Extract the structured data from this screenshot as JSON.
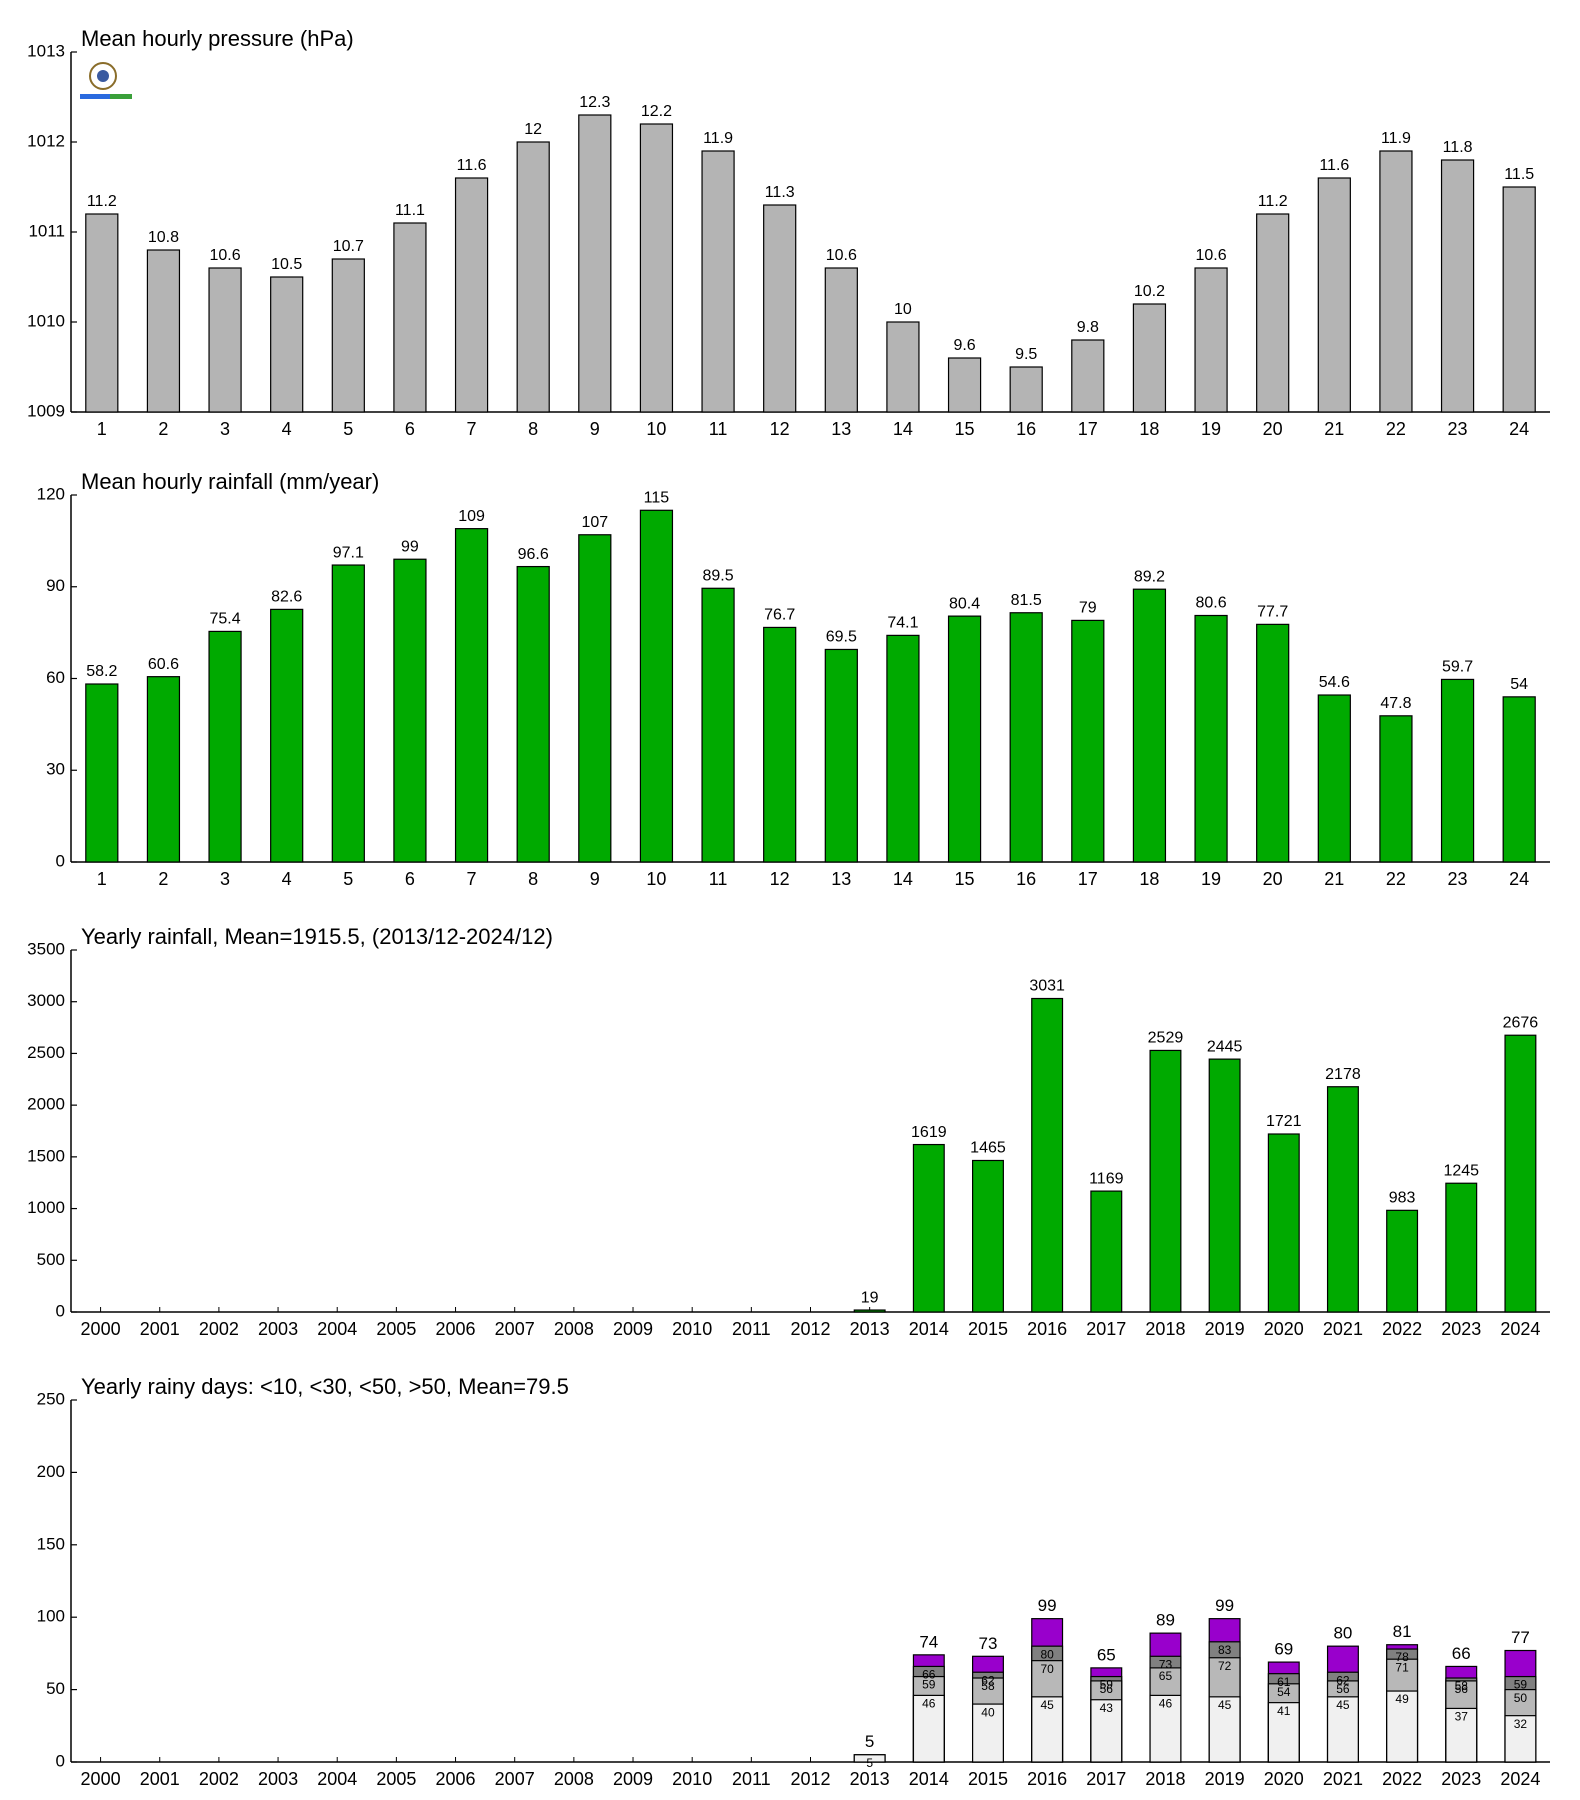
{
  "chart_data": [
    {
      "type": "bar",
      "title": "Mean hourly pressure (hPa)",
      "categories": [
        "1",
        "2",
        "3",
        "4",
        "5",
        "6",
        "7",
        "8",
        "9",
        "10",
        "11",
        "12",
        "13",
        "14",
        "15",
        "16",
        "17",
        "18",
        "19",
        "20",
        "21",
        "22",
        "23",
        "24"
      ],
      "values": [
        1011.2,
        1010.8,
        1010.6,
        1010.5,
        1010.7,
        1011.1,
        1011.6,
        1012,
        1012.3,
        1012.2,
        1011.9,
        1011.3,
        1010.6,
        1010,
        1009.6,
        1009.5,
        1009.8,
        1010.2,
        1010.6,
        1011.2,
        1011.6,
        1011.9,
        1011.8,
        1011.5
      ],
      "value_labels": [
        "11.2",
        "10.8",
        "10.6",
        "10.5",
        "10.7",
        "11.1",
        "11.6",
        "12",
        "12.3",
        "12.2",
        "11.9",
        "11.3",
        "10.6",
        "10",
        "9.6",
        "9.5",
        "9.8",
        "10.2",
        "10.6",
        "11.2",
        "11.6",
        "11.9",
        "11.8",
        "11.5"
      ],
      "color": "#b4b4b4",
      "ylim": [
        1009,
        1013
      ],
      "yticks": [
        1009,
        1010,
        1011,
        1012,
        1013
      ]
    },
    {
      "type": "bar",
      "title": "Mean hourly rainfall (mm/year)",
      "categories": [
        "1",
        "2",
        "3",
        "4",
        "5",
        "6",
        "7",
        "8",
        "9",
        "10",
        "11",
        "12",
        "13",
        "14",
        "15",
        "16",
        "17",
        "18",
        "19",
        "20",
        "21",
        "22",
        "23",
        "24"
      ],
      "values": [
        58.2,
        60.6,
        75.4,
        82.6,
        97.1,
        99,
        109,
        96.6,
        107,
        115,
        89.5,
        76.7,
        69.5,
        74.1,
        80.4,
        81.5,
        79,
        89.2,
        80.6,
        77.7,
        54.6,
        47.8,
        59.7,
        54
      ],
      "color": "#00aa00",
      "ylim": [
        0,
        120
      ],
      "yticks": [
        0,
        30,
        60,
        90,
        120
      ]
    },
    {
      "type": "bar",
      "title": "Yearly rainfall, Mean=1915.5, (2013/12-2024/12)",
      "categories": [
        "2000",
        "2001",
        "2002",
        "2003",
        "2004",
        "2005",
        "2006",
        "2007",
        "2008",
        "2009",
        "2010",
        "2011",
        "2012",
        "2013",
        "2014",
        "2015",
        "2016",
        "2017",
        "2018",
        "2019",
        "2020",
        "2021",
        "2022",
        "2023",
        "2024"
      ],
      "values": [
        null,
        null,
        null,
        null,
        null,
        null,
        null,
        null,
        null,
        null,
        null,
        null,
        null,
        19,
        1619,
        1465,
        3031,
        1169,
        2529,
        2445,
        1721,
        2178,
        983,
        1245,
        2676
      ],
      "color": "#00aa00",
      "ylim": [
        0,
        3500
      ],
      "yticks": [
        0,
        500,
        1000,
        1500,
        2000,
        2500,
        3000,
        3500
      ]
    },
    {
      "type": "bar",
      "title": "Yearly rainy days: <10, <30, <50, >50, Mean=79.5",
      "overlap": true,
      "categories": [
        "2000",
        "2001",
        "2002",
        "2003",
        "2004",
        "2005",
        "2006",
        "2007",
        "2008",
        "2009",
        "2010",
        "2011",
        "2012",
        "2013",
        "2014",
        "2015",
        "2016",
        "2017",
        "2018",
        "2019",
        "2020",
        "2021",
        "2022",
        "2023",
        "2024"
      ],
      "series": [
        {
          "color": "#f0f0f0",
          "values": [
            null,
            null,
            null,
            null,
            null,
            null,
            null,
            null,
            null,
            null,
            null,
            null,
            null,
            5,
            46,
            40,
            45,
            43,
            46,
            45,
            41,
            45,
            49,
            37,
            32
          ]
        },
        {
          "color": "#b8b8b8",
          "values": [
            null,
            null,
            null,
            null,
            null,
            null,
            null,
            null,
            null,
            null,
            null,
            null,
            null,
            null,
            59,
            58,
            70,
            56,
            65,
            72,
            54,
            56,
            71,
            56,
            50
          ]
        },
        {
          "color": "#808080",
          "values": [
            null,
            null,
            null,
            null,
            null,
            null,
            null,
            null,
            null,
            null,
            null,
            null,
            null,
            null,
            66,
            62,
            80,
            59,
            73,
            83,
            61,
            62,
            78,
            58,
            59
          ]
        },
        {
          "color": "#9900cc",
          "values": [
            null,
            null,
            null,
            null,
            null,
            null,
            null,
            null,
            null,
            null,
            null,
            null,
            null,
            5,
            74,
            73,
            99,
            65,
            89,
            99,
            69,
            80,
            81,
            66,
            77
          ]
        }
      ],
      "ylim": [
        0,
        250
      ],
      "yticks": [
        0,
        50,
        100,
        150,
        200,
        250
      ]
    }
  ]
}
